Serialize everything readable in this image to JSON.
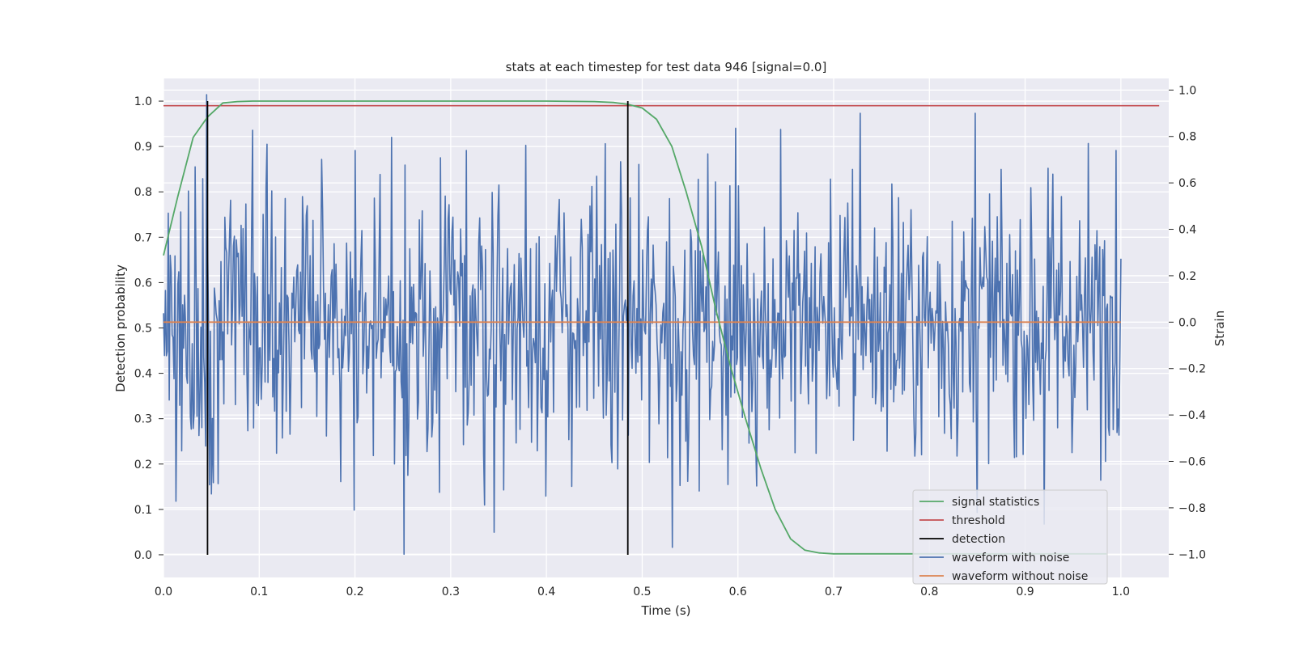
{
  "chart_data": {
    "type": "line",
    "title": "stats at each timestep for test data 946 [signal=0.0]",
    "xlabel": "Time (s)",
    "ylabel": "Detection probability",
    "y2label": "Strain",
    "xlim": [
      0.0,
      1.05
    ],
    "ylim": [
      -0.05,
      1.05
    ],
    "y2lim": [
      -1.1,
      1.05
    ],
    "xticks": [
      0.0,
      0.1,
      0.2,
      0.3,
      0.4,
      0.5,
      0.6,
      0.7,
      0.8,
      0.9,
      1.0
    ],
    "yticks": [
      0.0,
      0.1,
      0.2,
      0.3,
      0.4,
      0.5,
      0.6,
      0.7,
      0.8,
      0.9,
      1.0
    ],
    "y2ticks": [
      -1.0,
      -0.8,
      -0.6,
      -0.4,
      -0.2,
      0.0,
      0.2,
      0.4,
      0.6,
      0.8,
      1.0
    ],
    "grid": true,
    "legend_position": "lower-right",
    "series": [
      {
        "name": "signal statistics",
        "axis": "left",
        "color": "#55a868",
        "x": [
          0.0,
          0.015,
          0.031,
          0.046,
          0.062,
          0.077,
          0.093,
          0.2,
          0.3,
          0.4,
          0.45,
          0.47,
          0.485,
          0.5,
          0.515,
          0.531,
          0.546,
          0.562,
          0.577,
          0.593,
          0.608,
          0.624,
          0.639,
          0.655,
          0.67,
          0.685,
          0.7,
          0.75,
          0.85,
          0.95,
          0.985
        ],
        "y": [
          0.66,
          0.79,
          0.92,
          0.965,
          0.996,
          0.999,
          1.0,
          1.0,
          1.0,
          1.0,
          0.999,
          0.997,
          0.993,
          0.985,
          0.96,
          0.9,
          0.8,
          0.68,
          0.54,
          0.41,
          0.3,
          0.19,
          0.1,
          0.035,
          0.01,
          0.004,
          0.002,
          0.002,
          0.002,
          0.002,
          0.002
        ]
      },
      {
        "name": "threshold",
        "axis": "left",
        "color": "#c44e52",
        "x": [
          0.0,
          1.04
        ],
        "y": [
          0.99,
          0.99
        ]
      },
      {
        "name": "detection",
        "axis": "left",
        "color": "#000000",
        "x": [
          0.046,
          0.485
        ],
        "y_range": [
          0.0,
          1.0
        ]
      },
      {
        "name": "waveform with noise",
        "axis": "right",
        "color": "#4c72b0",
        "x_start": 0.0,
        "x_end": 1.0,
        "y_amplitude": 0.3,
        "y_min": -1.0,
        "y_max": 1.0,
        "peaks": [
          {
            "x": 0.045,
            "y": 0.98
          },
          {
            "x": 0.05,
            "y": -0.74
          },
          {
            "x": 0.251,
            "y": -1.0
          },
          {
            "x": 0.532,
            "y": -0.97
          },
          {
            "x": 0.85,
            "y": -0.82
          },
          {
            "x": 0.92,
            "y": -0.87
          },
          {
            "x": 0.728,
            "y": 0.9
          },
          {
            "x": 0.848,
            "y": 0.9
          },
          {
            "x": 0.645,
            "y": 0.83
          },
          {
            "x": 0.2,
            "y": 0.74
          },
          {
            "x": 0.316,
            "y": 0.74
          },
          {
            "x": 0.995,
            "y": 0.74
          }
        ]
      },
      {
        "name": "waveform without noise",
        "axis": "right",
        "color": "#dd8452",
        "x": [
          0.0,
          1.0
        ],
        "y": [
          0.0,
          0.0
        ]
      }
    ]
  }
}
